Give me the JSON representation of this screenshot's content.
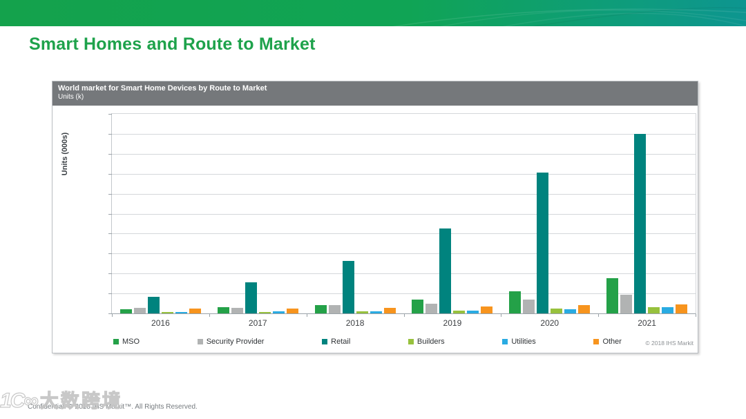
{
  "page": {
    "title": "Smart Homes and Route to Market"
  },
  "chart": {
    "header": {
      "title": "World market for Smart Home Devices by Route to Market",
      "subtitle": "Units (k)"
    },
    "y_axis_label": "Units (000s)",
    "copyright": "© 2018 IHS Markit"
  },
  "chart_data": {
    "type": "bar",
    "title": "World market for Smart Home Devices by Route to Market",
    "subtitle": "Units (k)",
    "xlabel": "",
    "ylabel": "Units (000s)",
    "categories": [
      "2016",
      "2017",
      "2018",
      "2019",
      "2020",
      "2021"
    ],
    "series": [
      {
        "name": "MSO",
        "color": "#24a148",
        "values": [
          0.2,
          0.3,
          0.43,
          0.69,
          1.12,
          1.75
        ]
      },
      {
        "name": "Security Provider",
        "color": "#b1b3b3",
        "values": [
          0.26,
          0.28,
          0.4,
          0.5,
          0.7,
          0.95
        ]
      },
      {
        "name": "Retail",
        "color": "#00837e",
        "values": [
          0.84,
          1.57,
          2.62,
          4.25,
          7.05,
          9.0
        ]
      },
      {
        "name": "Builders",
        "color": "#97c13d",
        "values": [
          0.08,
          0.07,
          0.12,
          0.15,
          0.23,
          0.3
        ]
      },
      {
        "name": "Utilities",
        "color": "#29abe2",
        "values": [
          0.07,
          0.1,
          0.1,
          0.13,
          0.22,
          0.3
        ]
      },
      {
        "name": "Other",
        "color": "#f7941e",
        "values": [
          0.23,
          0.24,
          0.29,
          0.35,
          0.4,
          0.46
        ]
      }
    ],
    "ylim": [
      0,
      10
    ],
    "gridline_interval": 1,
    "grid": true,
    "y_tick_labels_visible": false,
    "legend_position": "bottom",
    "note": "Y axis shows no numeric tick labels; values estimated in gridline units (1 = one gridline division of the 10-division axis)."
  },
  "footer": {
    "text": "Confidential. © 2018 IHS Markit™. All Rights Reserved."
  },
  "watermark": {
    "logo": "1C∞",
    "text": "大数跨境"
  },
  "colors": {
    "banner_green": "#14a24c",
    "banner_teal": "#0d9590",
    "title_green": "#1ea24b",
    "chart_header_gray": "#75787b",
    "gridline": "#d4d7da",
    "axis": "#9aa2a8"
  }
}
